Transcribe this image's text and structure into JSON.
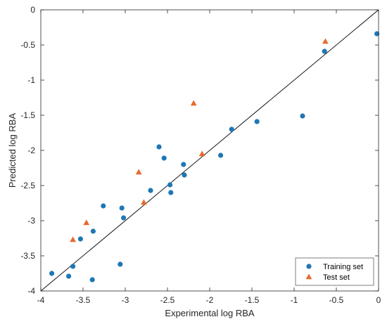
{
  "chart_data": {
    "type": "scatter",
    "xlabel": "Experimental log RBA",
    "ylabel": "Predicted log RBA",
    "xlim": [
      -4,
      0
    ],
    "ylim": [
      -4,
      0
    ],
    "xticks": [
      -4,
      -3.5,
      -3,
      -2.5,
      -2,
      -1.5,
      -1,
      -0.5,
      0
    ],
    "yticks": [
      -4,
      -3.5,
      -3,
      -2.5,
      -2,
      -1.5,
      -1,
      -0.5,
      0
    ],
    "xtick_labels": [
      "-4",
      "-3.5",
      "-3",
      "-2.5",
      "-2",
      "-1.5",
      "-1",
      "-0.5",
      "0"
    ],
    "ytick_labels": [
      "-4",
      "-3.5",
      "-3",
      "-2.5",
      "-2",
      "-1.5",
      "-1",
      "-0.5",
      "0"
    ],
    "grid": false,
    "legend_position": "bottom-right",
    "reference_line": {
      "x": [
        -4,
        0
      ],
      "y": [
        -4,
        0
      ]
    },
    "series": [
      {
        "name": "Training set",
        "marker": "circle",
        "color": "#1f77b4",
        "points": [
          [
            -3.87,
            -3.75
          ],
          [
            -3.67,
            -3.79
          ],
          [
            -3.62,
            -3.65
          ],
          [
            -3.53,
            -3.26
          ],
          [
            -3.38,
            -3.15
          ],
          [
            -3.39,
            -3.84
          ],
          [
            -3.26,
            -2.79
          ],
          [
            -3.04,
            -2.82
          ],
          [
            -3.02,
            -2.96
          ],
          [
            -3.06,
            -3.62
          ],
          [
            -2.7,
            -2.57
          ],
          [
            -2.6,
            -1.95
          ],
          [
            -2.54,
            -2.11
          ],
          [
            -2.47,
            -2.49
          ],
          [
            -2.46,
            -2.6
          ],
          [
            -2.31,
            -2.2
          ],
          [
            -2.3,
            -2.35
          ],
          [
            -1.87,
            -2.07
          ],
          [
            -1.74,
            -1.7
          ],
          [
            -1.44,
            -1.59
          ],
          [
            -0.9,
            -1.51
          ],
          [
            -0.64,
            -0.59
          ],
          [
            -0.02,
            -0.34
          ]
        ]
      },
      {
        "name": "Test set",
        "marker": "triangle",
        "color": "#e8692c",
        "points": [
          [
            -3.62,
            -3.27
          ],
          [
            -3.46,
            -3.03
          ],
          [
            -2.84,
            -2.31
          ],
          [
            -2.78,
            -2.74
          ],
          [
            -2.19,
            -1.33
          ],
          [
            -2.09,
            -2.05
          ],
          [
            -0.63,
            -0.45
          ]
        ]
      }
    ]
  }
}
